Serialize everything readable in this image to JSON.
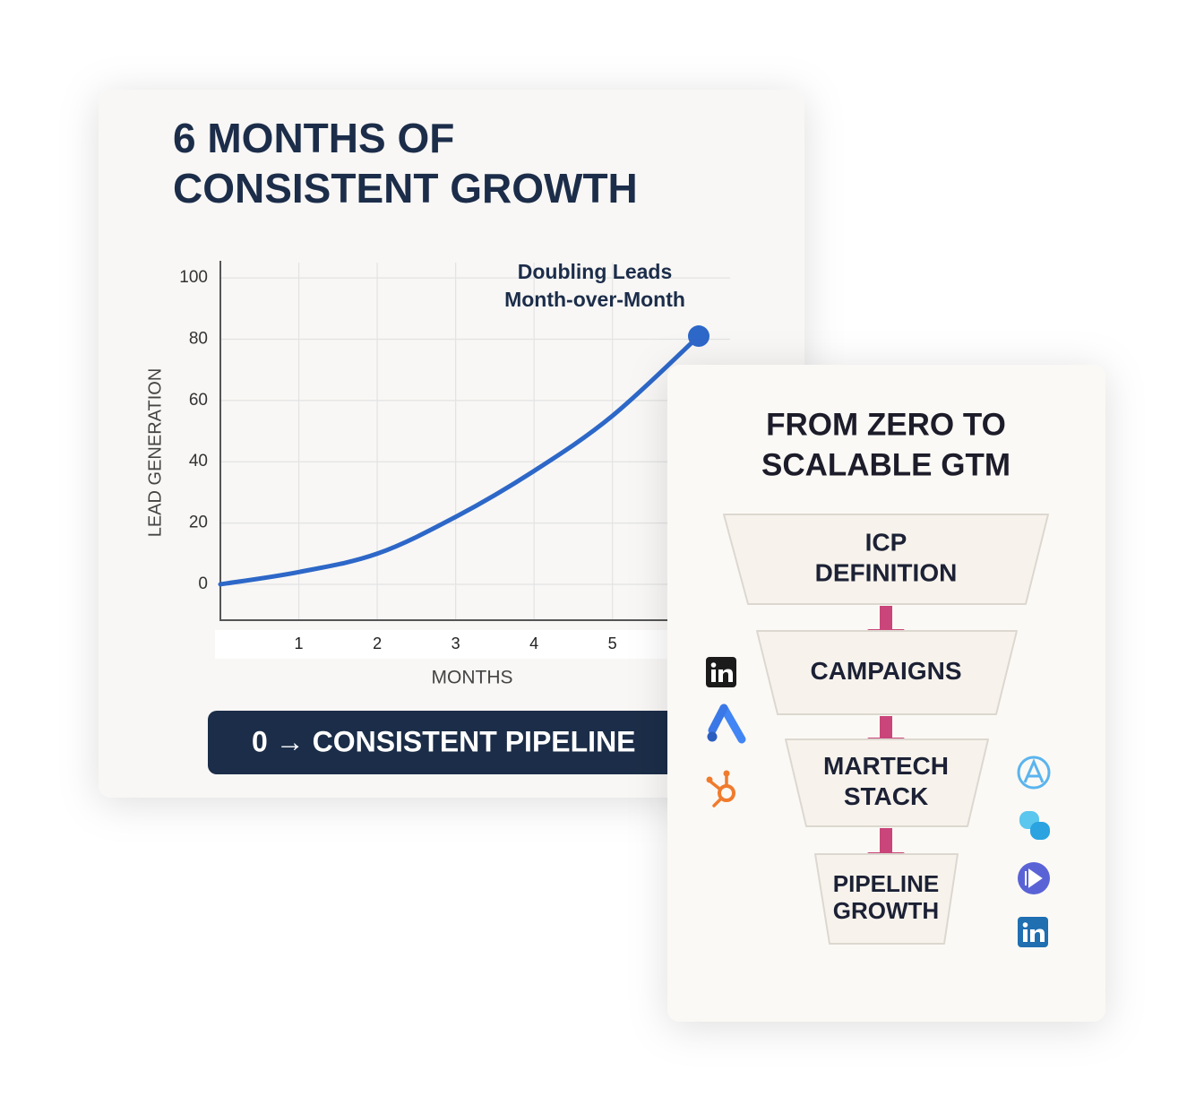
{
  "chart_data": {
    "type": "line",
    "title": [
      "6 MONTHS OF",
      "CONSISTENT GROWTH"
    ],
    "annotation": [
      "Doubling Leads",
      "Month-over-Month"
    ],
    "x_label": "MONTHS",
    "y_label": "LEAD GENERATION",
    "x": [
      0,
      1,
      2,
      3,
      4,
      5,
      6.1
    ],
    "series": [
      {
        "color": "#2d67c8",
        "values": [
          0,
          4,
          10,
          22,
          37,
          55,
          81
        ]
      }
    ],
    "xlim": [
      0,
      6.5
    ],
    "ylim": [
      -12,
      105
    ],
    "xticks": [
      1,
      2,
      3,
      4,
      5
    ],
    "yticks": [
      0,
      20,
      40,
      60,
      80,
      100
    ],
    "grid": true,
    "banner": "0 → CONSISTENT PIPELINE"
  },
  "funnel": {
    "title": [
      "FROM ZERO TO",
      "SCALABLE GTM"
    ],
    "stages": [
      {
        "label": [
          "ICP",
          "DEFINITION"
        ]
      },
      {
        "label": [
          "CAMPAIGNS"
        ]
      },
      {
        "label": [
          "MARTECH",
          "STACK"
        ]
      },
      {
        "label": [
          "PIPELINE",
          "GROWTH"
        ]
      }
    ]
  }
}
